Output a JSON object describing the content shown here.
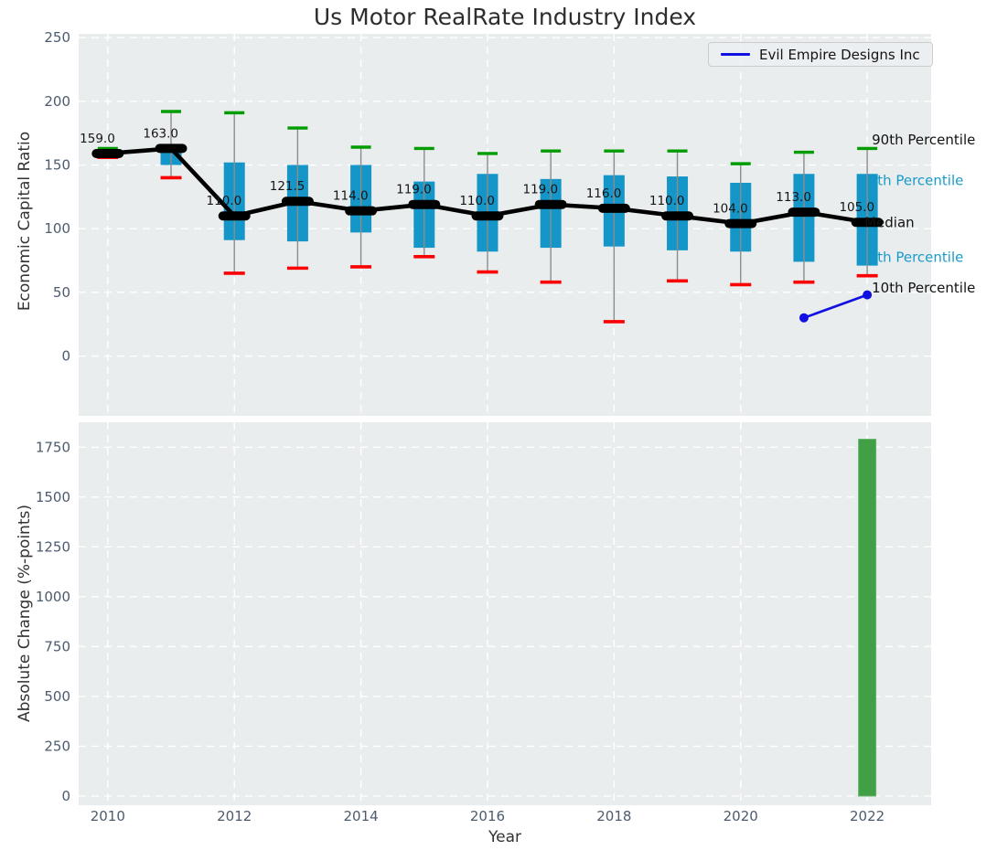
{
  "colors": {
    "panel_bg": "#e9edee",
    "grid": "#ffffff",
    "box_fill": "#1596c8",
    "whisker": "#8c8c8c",
    "cap_90th": "#009c00",
    "cap_10th": "#fb0000",
    "median": "#000000",
    "company_line": "#1010e0",
    "bar_fill": "#41a046",
    "bar_edge": "#66b46a",
    "tick_label": "#4c5b6e",
    "annotation_teal": "#199bc9",
    "annotation_black": "#121212"
  },
  "chart_data": [
    {
      "type": "boxplot",
      "title": "Us Motor RealRate Industry Index",
      "ylabel": "Economic Capital Ratio",
      "xlabel": "",
      "ylim": [
        -47,
        253
      ],
      "xlim": [
        2009.54,
        2023.01
      ],
      "yticks": [
        0,
        50,
        100,
        150,
        200,
        250
      ],
      "xticks": [
        2010,
        2012,
        2014,
        2016,
        2018,
        2020,
        2022
      ],
      "grid": true,
      "legend": {
        "label": "Evil Empire Designs Inc",
        "position": "upper right"
      },
      "boxes": [
        {
          "year": 2010,
          "q10": 156,
          "q25": 157.5,
          "median": 159,
          "q75": 160.5,
          "q90": 163,
          "label": "159.0"
        },
        {
          "year": 2011,
          "q10": 140,
          "q25": 150,
          "median": 163,
          "q75": 164,
          "q90": 192,
          "label": "163.0"
        },
        {
          "year": 2012,
          "q10": 65,
          "q25": 91,
          "median": 110,
          "q75": 152,
          "q90": 191,
          "label": "110.0"
        },
        {
          "year": 2013,
          "q10": 69,
          "q25": 90,
          "median": 121.5,
          "q75": 150,
          "q90": 179,
          "label": "121.5"
        },
        {
          "year": 2014,
          "q10": 70,
          "q25": 97,
          "median": 114,
          "q75": 150,
          "q90": 164,
          "label": "114.0"
        },
        {
          "year": 2015,
          "q10": 78,
          "q25": 85,
          "median": 119,
          "q75": 137,
          "q90": 163,
          "label": "119.0"
        },
        {
          "year": 2016,
          "q10": 66,
          "q25": 82,
          "median": 110,
          "q75": 143,
          "q90": 159,
          "label": "110.0"
        },
        {
          "year": 2017,
          "q10": 58,
          "q25": 85,
          "median": 119,
          "q75": 139,
          "q90": 161,
          "label": "119.0"
        },
        {
          "year": 2018,
          "q10": 27,
          "q25": 86,
          "median": 116,
          "q75": 142,
          "q90": 161,
          "label": "116.0"
        },
        {
          "year": 2019,
          "q10": 59,
          "q25": 83,
          "median": 110,
          "q75": 141,
          "q90": 161,
          "label": "110.0"
        },
        {
          "year": 2020,
          "q10": 56,
          "q25": 82,
          "median": 104,
          "q75": 136,
          "q90": 151,
          "label": "104.0"
        },
        {
          "year": 2021,
          "q10": 58,
          "q25": 74,
          "median": 113,
          "q75": 143,
          "q90": 160,
          "label": "113.0"
        },
        {
          "year": 2022,
          "q10": 63,
          "q25": 71,
          "median": 105,
          "q75": 143,
          "q90": 163,
          "label": "105.0"
        }
      ],
      "company_series": {
        "name": "Evil Empire Designs Inc",
        "x": [
          2021,
          2022
        ],
        "y": [
          30,
          48
        ]
      },
      "right_annotations": [
        {
          "text": "90th Percentile",
          "v": 170,
          "color": "black",
          "dx": 5
        },
        {
          "text": "75th Percentile",
          "v": 138,
          "color": "teal",
          "dx": -8
        },
        {
          "text": "Median",
          "v": 105,
          "color": "black",
          "dx": -3
        },
        {
          "text": "25th Percentile",
          "v": 78,
          "color": "teal",
          "dx": -8
        },
        {
          "text": "10th Percentile",
          "v": 54,
          "color": "black",
          "dx": 5
        }
      ]
    },
    {
      "type": "bar",
      "title": "",
      "ylabel": "Absolute Change (%-points)",
      "xlabel": "Year",
      "ylim": [
        -46,
        1875
      ],
      "yticks": [
        0,
        250,
        500,
        750,
        1000,
        1250,
        1500,
        1750
      ],
      "xticks": [
        2010,
        2012,
        2014,
        2016,
        2018,
        2020,
        2022
      ],
      "grid": true,
      "bars": [
        {
          "year": 2022,
          "value": 1790
        }
      ]
    }
  ]
}
